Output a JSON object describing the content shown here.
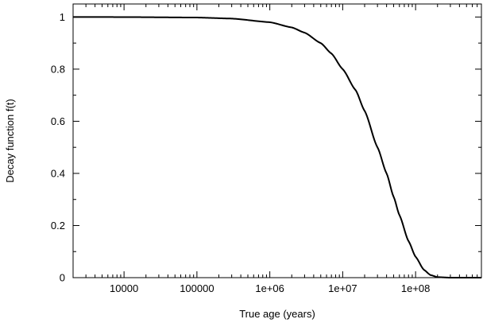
{
  "chart_data": {
    "type": "line",
    "title": "",
    "xlabel": "True age (years)",
    "ylabel": "Decay function f(t)",
    "xscale": "log",
    "xlim": [
      2000,
      800000000
    ],
    "ylim": [
      0,
      1.05
    ],
    "grid": false,
    "legend": "none",
    "xticks": [
      {
        "value": 10000,
        "label": "10000"
      },
      {
        "value": 100000,
        "label": "100000"
      },
      {
        "value": 1000000,
        "label": "1e+06"
      },
      {
        "value": 10000000,
        "label": "1e+07"
      },
      {
        "value": 100000000,
        "label": "1e+08"
      }
    ],
    "yticks": [
      {
        "value": 0,
        "label": "0"
      },
      {
        "value": 0.2,
        "label": "0.2"
      },
      {
        "value": 0.4,
        "label": "0.4"
      },
      {
        "value": 0.6,
        "label": "0.6"
      },
      {
        "value": 0.8,
        "label": "0.8"
      },
      {
        "value": 1,
        "label": "1"
      }
    ],
    "series": [
      {
        "color": "#000000",
        "x": [
          2000,
          10000,
          100000,
          300000,
          1000000,
          2000000,
          3000000,
          5000000,
          7000000,
          10000000,
          15000000,
          20000000,
          30000000,
          40000000,
          50000000,
          60000000,
          80000000,
          100000000,
          130000000,
          160000000,
          200000000,
          300000000,
          500000000,
          800000000
        ],
        "y": [
          1.0,
          0.9998,
          0.998,
          0.994,
          0.98,
          0.96,
          0.94,
          0.9,
          0.86,
          0.8,
          0.72,
          0.64,
          0.5,
          0.4,
          0.31,
          0.24,
          0.14,
          0.08,
          0.03,
          0.01,
          0.002,
          0.0,
          0.0,
          0.0
        ]
      }
    ]
  }
}
